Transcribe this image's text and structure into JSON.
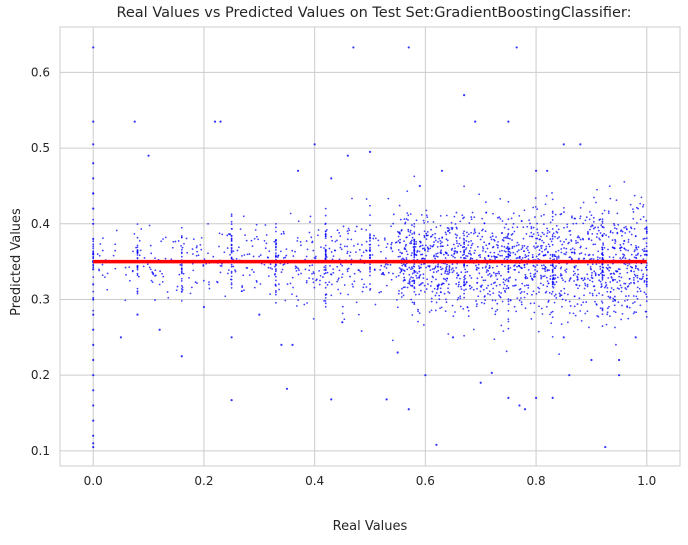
{
  "chart_data": {
    "type": "scatter",
    "title": "Real Values vs Predicted Values on Test Set:GradientBoostingClassifier:",
    "xlabel": "Real Values",
    "ylabel": "Predicted Values",
    "xlim": [
      -0.06,
      1.06
    ],
    "ylim": [
      0.08,
      0.66
    ],
    "x_ticks": [
      0.0,
      0.2,
      0.4,
      0.6,
      0.8,
      1.0
    ],
    "x_tick_labels": [
      "0.0",
      "0.2",
      "0.4",
      "0.6",
      "0.8",
      "1.0"
    ],
    "y_ticks": [
      0.1,
      0.2,
      0.3,
      0.4,
      0.5,
      0.6
    ],
    "y_tick_labels": [
      "0.1",
      "0.2",
      "0.3",
      "0.4",
      "0.5",
      "0.6"
    ],
    "grid": true,
    "series": [
      {
        "kind": "scatter",
        "color": "#0000ff",
        "points": [
          [
            0.0,
            0.633
          ],
          [
            0.0,
            0.535
          ],
          [
            0.0,
            0.505
          ],
          [
            0.0,
            0.48
          ],
          [
            0.0,
            0.46
          ],
          [
            0.0,
            0.44
          ],
          [
            0.0,
            0.42
          ],
          [
            0.0,
            0.4
          ],
          [
            0.0,
            0.38
          ],
          [
            0.0,
            0.36
          ],
          [
            0.0,
            0.35
          ],
          [
            0.0,
            0.34
          ],
          [
            0.0,
            0.32
          ],
          [
            0.0,
            0.3
          ],
          [
            0.0,
            0.28
          ],
          [
            0.0,
            0.26
          ],
          [
            0.0,
            0.24
          ],
          [
            0.0,
            0.22
          ],
          [
            0.0,
            0.2
          ],
          [
            0.0,
            0.18
          ],
          [
            0.0,
            0.16
          ],
          [
            0.0,
            0.14
          ],
          [
            0.0,
            0.12
          ],
          [
            0.0,
            0.11
          ],
          [
            0.0,
            0.105
          ],
          [
            0.075,
            0.535
          ],
          [
            0.22,
            0.535
          ],
          [
            0.23,
            0.535
          ],
          [
            0.47,
            0.633
          ],
          [
            0.57,
            0.633
          ],
          [
            0.765,
            0.633
          ],
          [
            0.67,
            0.57
          ],
          [
            0.69,
            0.535
          ],
          [
            0.75,
            0.535
          ],
          [
            0.1,
            0.49
          ],
          [
            0.4,
            0.505
          ],
          [
            0.46,
            0.49
          ],
          [
            0.5,
            0.495
          ],
          [
            0.85,
            0.505
          ],
          [
            0.88,
            0.505
          ],
          [
            0.63,
            0.47
          ],
          [
            0.8,
            0.47
          ],
          [
            0.82,
            0.47
          ],
          [
            0.37,
            0.47
          ],
          [
            0.43,
            0.46
          ],
          [
            0.59,
            0.45
          ],
          [
            0.25,
            0.167
          ],
          [
            0.43,
            0.168
          ],
          [
            0.53,
            0.168
          ],
          [
            0.75,
            0.17
          ],
          [
            0.77,
            0.16
          ],
          [
            0.78,
            0.155
          ],
          [
            0.8,
            0.17
          ],
          [
            0.83,
            0.17
          ],
          [
            0.62,
            0.108
          ],
          [
            0.925,
            0.105
          ],
          [
            0.57,
            0.155
          ],
          [
            0.7,
            0.19
          ],
          [
            0.72,
            0.203
          ],
          [
            0.86,
            0.2
          ],
          [
            0.95,
            0.2
          ],
          [
            0.16,
            0.225
          ],
          [
            0.35,
            0.182
          ],
          [
            0.36,
            0.24
          ],
          [
            0.34,
            0.24
          ],
          [
            0.6,
            0.2
          ],
          [
            0.2,
            0.29
          ],
          [
            0.25,
            0.25
          ],
          [
            0.3,
            0.28
          ],
          [
            0.45,
            0.27
          ],
          [
            0.55,
            0.23
          ],
          [
            0.65,
            0.25
          ],
          [
            0.85,
            0.25
          ],
          [
            0.9,
            0.22
          ],
          [
            0.95,
            0.22
          ],
          [
            0.98,
            0.25
          ],
          [
            0.12,
            0.26
          ],
          [
            0.08,
            0.28
          ],
          [
            0.05,
            0.25
          ]
        ],
        "cloud": {
          "x_range": [
            0.0,
            1.0
          ],
          "y_center": 0.35,
          "y_spread": 0.025,
          "count": 2400,
          "vertical_stripes": [
            0.0,
            0.08,
            0.16,
            0.25,
            0.33,
            0.42,
            0.5,
            0.58,
            0.67,
            0.75,
            0.83,
            0.92,
            1.0
          ]
        }
      },
      {
        "kind": "line",
        "color": "#ff0000",
        "x": [
          0.0,
          1.0
        ],
        "y": [
          0.35,
          0.35
        ]
      }
    ]
  }
}
